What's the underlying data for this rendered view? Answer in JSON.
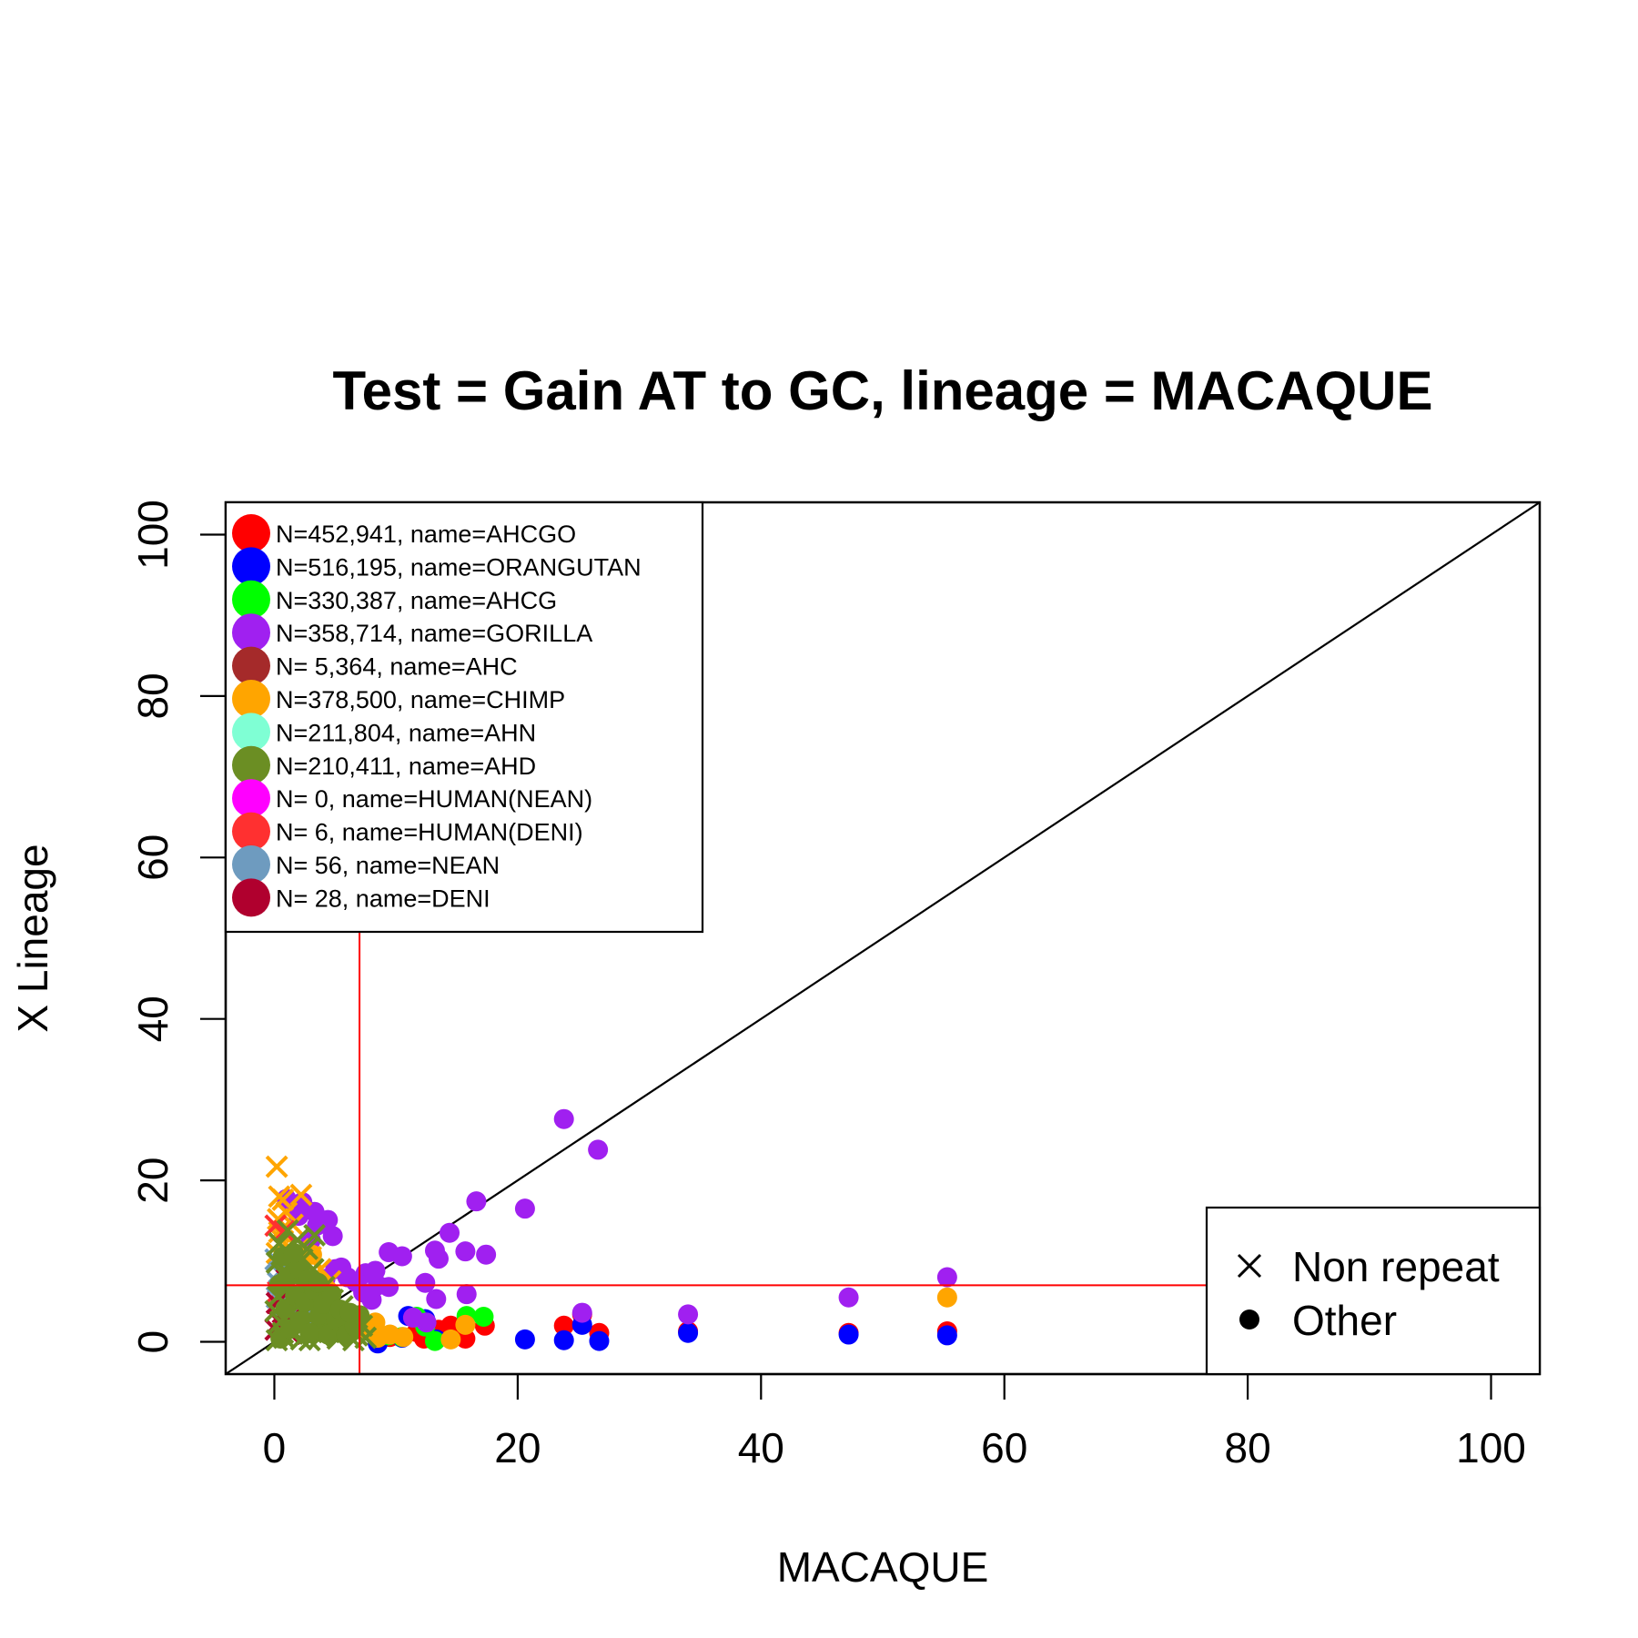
{
  "chart_data": {
    "type": "scatter",
    "title": "Test = Gain AT to GC, lineage = MACAQUE",
    "xlabel": "MACAQUE",
    "ylabel": "X Lineage",
    "xlim": [
      -4,
      104
    ],
    "ylim": [
      -4,
      104
    ],
    "xticks": [
      "0",
      "20",
      "40",
      "60",
      "80",
      "100"
    ],
    "yticks": [
      "0",
      "20",
      "40",
      "60",
      "80",
      "100"
    ],
    "xtick_values": [
      0,
      20,
      40,
      60,
      80,
      100
    ],
    "ytick_values": [
      0,
      20,
      40,
      60,
      80,
      100
    ],
    "grid": false,
    "reference_lines": {
      "diagonal": true,
      "vertical_x": 7,
      "horizontal_y": 7,
      "threshold_color": "#ff0000"
    },
    "series_legend": {
      "placement": "top-left",
      "entries": [
        {
          "label": "N=452,941, name=AHCGO",
          "color": "#ff0000"
        },
        {
          "label": "N=516,195, name=ORANGUTAN",
          "color": "#0000ff"
        },
        {
          "label": "N=330,387, name=AHCG",
          "color": "#00ff00"
        },
        {
          "label": "N=358,714, name=GORILLA",
          "color": "#a020f0"
        },
        {
          "label": "N=  5,364, name=AHC",
          "color": "#a52a2a"
        },
        {
          "label": "N=378,500, name=CHIMP",
          "color": "#ffa500"
        },
        {
          "label": "N=211,804, name=AHN",
          "color": "#7fffd4"
        },
        {
          "label": "N=210,411, name=AHD",
          "color": "#6b8e23"
        },
        {
          "label": "N=      0, name=HUMAN(NEAN)",
          "color": "#ff00ff"
        },
        {
          "label": "N=      6, name=HUMAN(DENI)",
          "color": "#ff3030"
        },
        {
          "label": "N=     56, name=NEAN",
          "color": "#6e9bbf"
        },
        {
          "label": "N=     28, name=DENI",
          "color": "#b0002e"
        }
      ]
    },
    "shape_legend": {
      "placement": "bottom-right",
      "entries": [
        {
          "label": "Non repeat",
          "symbol": "cross"
        },
        {
          "label": "Other",
          "symbol": "dot"
        }
      ]
    },
    "series": [
      {
        "color": "#ff0000",
        "points": [
          [
            11.7,
            1.2
          ],
          [
            13.5,
            1.5
          ],
          [
            14.5,
            2.0
          ],
          [
            15.7,
            0.4
          ],
          [
            17.3,
            2.0
          ],
          [
            23.8,
            2.0
          ],
          [
            25.3,
            3.4
          ],
          [
            26.7,
            1.1
          ],
          [
            34,
            1.3
          ],
          [
            47.2,
            1.1
          ],
          [
            55.3,
            1.3
          ],
          [
            9.5,
            0.6
          ],
          [
            12.3,
            0.4
          ]
        ],
        "marker": "dot"
      },
      {
        "color": "#0000ff",
        "points": [
          [
            11,
            3.2
          ],
          [
            12.4,
            2.8
          ],
          [
            13.3,
            0.3
          ],
          [
            20.6,
            0.3
          ],
          [
            23.8,
            0.2
          ],
          [
            25.3,
            2.1
          ],
          [
            26.7,
            0.1
          ],
          [
            34,
            1.1
          ],
          [
            47.2,
            0.9
          ],
          [
            55.3,
            0.8
          ],
          [
            8.5,
            -0.2
          ],
          [
            10.5,
            0.5
          ]
        ],
        "marker": "dot"
      },
      {
        "color": "#00ff00",
        "points": [
          [
            10.5,
            0.6
          ],
          [
            11.7,
            3.1
          ],
          [
            12.4,
            1.9
          ],
          [
            15.8,
            3.2
          ],
          [
            17.2,
            3.1
          ],
          [
            13.2,
            0.1
          ],
          [
            9.4,
            0.8
          ]
        ],
        "marker": "dot"
      },
      {
        "color": "#a020f0",
        "points": [
          [
            23.8,
            27.6
          ],
          [
            26.6,
            23.8
          ],
          [
            16.6,
            17.4
          ],
          [
            20.6,
            16.5
          ],
          [
            14.4,
            13.5
          ],
          [
            13.2,
            11.3
          ],
          [
            15.7,
            11.2
          ],
          [
            17.4,
            10.8
          ],
          [
            13.5,
            10.3
          ],
          [
            9.4,
            11.1
          ],
          [
            10.5,
            10.6
          ],
          [
            9.4,
            6.8
          ],
          [
            8.5,
            7.0
          ],
          [
            12.4,
            7.3
          ],
          [
            13.3,
            5.3
          ],
          [
            15.8,
            5.9
          ],
          [
            7.5,
            8.5
          ],
          [
            8.3,
            8.8
          ],
          [
            6.0,
            8.0
          ],
          [
            5.5,
            9.2
          ],
          [
            4.4,
            15.1
          ],
          [
            4.8,
            13.1
          ],
          [
            3.5,
            14.4
          ],
          [
            3.3,
            16.1
          ],
          [
            2.3,
            17.3
          ],
          [
            2.0,
            15.6
          ],
          [
            1.5,
            17.0
          ],
          [
            1.0,
            17.7
          ],
          [
            3.0,
            12.6
          ],
          [
            7.3,
            6.1
          ],
          [
            6.7,
            7.4
          ],
          [
            4.2,
            7.8
          ],
          [
            5.0,
            9.0
          ],
          [
            25.3,
            3.6
          ],
          [
            34,
            3.4
          ],
          [
            47.2,
            5.5
          ],
          [
            55.3,
            8.0
          ],
          [
            8.0,
            5.2
          ]
        ],
        "marker": "dot"
      },
      {
        "color": "#ffa500",
        "points": [
          [
            55.3,
            5.5
          ],
          [
            15.7,
            2.1
          ],
          [
            14.5,
            0.3
          ],
          [
            8.5,
            0.5
          ],
          [
            9.5,
            0.9
          ],
          [
            10.6,
            0.6
          ],
          [
            8.3,
            2.4
          ],
          [
            7.3,
            1.4
          ],
          [
            6.4,
            1.8
          ],
          [
            3.1,
            10.8
          ]
        ],
        "marker": "dot"
      },
      {
        "color": "#a020f0",
        "points": [
          [
            12.5,
            2.4
          ],
          [
            11.4,
            3.0
          ]
        ],
        "marker": "dot"
      },
      {
        "color": "#ffa500",
        "points": [
          [
            0.2,
            21.7
          ],
          [
            2.2,
            18.2
          ],
          [
            0.4,
            18.0
          ],
          [
            0.7,
            17.6
          ],
          [
            1.0,
            16.0
          ],
          [
            0.3,
            15.2
          ],
          [
            1.5,
            14.5
          ],
          [
            0.4,
            13.6
          ],
          [
            0.7,
            12.5
          ],
          [
            2.0,
            11.5
          ],
          [
            3.0,
            10.5
          ],
          [
            3.8,
            9.0
          ],
          [
            4.6,
            7.5
          ],
          [
            1.2,
            10.0
          ],
          [
            0.2,
            11.0
          ]
        ],
        "marker": "cross"
      },
      {
        "color": "#ff3030",
        "points": [
          [
            0.1,
            14.4
          ],
          [
            0.8,
            13.7
          ],
          [
            1.2,
            7.0
          ],
          [
            0.3,
            6.2
          ],
          [
            2.2,
            4.4
          ],
          [
            0.6,
            3.0
          ]
        ],
        "marker": "cross"
      },
      {
        "color": "#6e9bbf",
        "points": [
          [
            0.1,
            10.2
          ],
          [
            0.4,
            8.6
          ],
          [
            1.1,
            9.5
          ],
          [
            0.3,
            7.3
          ],
          [
            1.6,
            6.5
          ],
          [
            2.5,
            5.2
          ],
          [
            3.3,
            4.5
          ],
          [
            0.9,
            4.6
          ],
          [
            4.2,
            3.8
          ],
          [
            2.0,
            3.3
          ],
          [
            3.0,
            2.4
          ],
          [
            0.2,
            5.5
          ],
          [
            5.2,
            3.0
          ]
        ],
        "marker": "cross"
      },
      {
        "color": "#b0002e",
        "points": [
          [
            0.2,
            4.8
          ],
          [
            0.7,
            3.6
          ],
          [
            1.0,
            7.7
          ],
          [
            0.4,
            2.5
          ],
          [
            1.6,
            3.2
          ],
          [
            0.1,
            1.5
          ],
          [
            1.3,
            1.0
          ]
        ],
        "marker": "cross"
      },
      {
        "color": "#6b8e23",
        "points": [
          [
            0.2,
            0.2
          ],
          [
            0.8,
            0.5
          ],
          [
            1.5,
            1.0
          ],
          [
            2.2,
            0.3
          ],
          [
            3.0,
            1.8
          ],
          [
            3.8,
            0.6
          ],
          [
            4.5,
            1.2
          ],
          [
            5.2,
            0.4
          ],
          [
            6.0,
            1.5
          ],
          [
            6.8,
            0.8
          ],
          [
            0.5,
            2.5
          ],
          [
            1.2,
            3.3
          ],
          [
            2.0,
            4.6
          ],
          [
            2.8,
            3.0
          ],
          [
            3.5,
            4.1
          ],
          [
            4.2,
            2.6
          ],
          [
            5.0,
            3.3
          ],
          [
            5.8,
            2.4
          ],
          [
            0.3,
            5.6
          ],
          [
            1.0,
            6.5
          ],
          [
            1.8,
            7.6
          ],
          [
            2.6,
            6.2
          ],
          [
            3.4,
            5.4
          ],
          [
            4.1,
            6.8
          ],
          [
            0.6,
            8.6
          ],
          [
            1.4,
            9.4
          ],
          [
            2.3,
            10.2
          ],
          [
            3.2,
            9.0
          ],
          [
            0.9,
            11.4
          ],
          [
            1.9,
            12.6
          ],
          [
            3.3,
            13.2
          ],
          [
            0.4,
            12.2
          ],
          [
            1.1,
            13.8
          ],
          [
            2.7,
            11.5
          ],
          [
            0.2,
            9.8
          ],
          [
            4.8,
            5.2
          ],
          [
            5.6,
            4.4
          ],
          [
            6.3,
            2.9
          ],
          [
            7.2,
            2.0
          ],
          [
            0.1,
            3.8
          ],
          [
            1.6,
            5.3
          ],
          [
            2.4,
            1.9
          ],
          [
            3.9,
            2.2
          ],
          [
            4.6,
            3.9
          ],
          [
            5.4,
            1.9
          ],
          [
            6.5,
            0.2
          ],
          [
            7.5,
            0.5
          ],
          [
            0.7,
            1.1
          ],
          [
            2.9,
            0.2
          ]
        ],
        "marker": "cross"
      },
      {
        "color": "#6b8e23",
        "points": [
          [
            0.5,
            0.4
          ],
          [
            1.3,
            1.6
          ],
          [
            2.1,
            2.6
          ],
          [
            2.9,
            1.1
          ],
          [
            3.7,
            3.3
          ],
          [
            4.4,
            0.9
          ],
          [
            5.1,
            2.6
          ],
          [
            5.9,
            0.9
          ],
          [
            6.6,
            1.9
          ],
          [
            7.0,
            3.3
          ],
          [
            0.9,
            4.1
          ],
          [
            1.7,
            5.7
          ],
          [
            2.5,
            4.9
          ],
          [
            3.3,
            6.4
          ],
          [
            4.0,
            4.7
          ],
          [
            4.7,
            5.9
          ],
          [
            0.4,
            7.1
          ],
          [
            1.2,
            8.1
          ],
          [
            2.1,
            8.9
          ],
          [
            2.8,
            7.7
          ],
          [
            3.6,
            7.3
          ],
          [
            0.7,
            10.6
          ],
          [
            1.6,
            11.0
          ],
          [
            5.4,
            4.0
          ],
          [
            6.2,
            3.6
          ]
        ],
        "marker": "dot"
      }
    ]
  }
}
